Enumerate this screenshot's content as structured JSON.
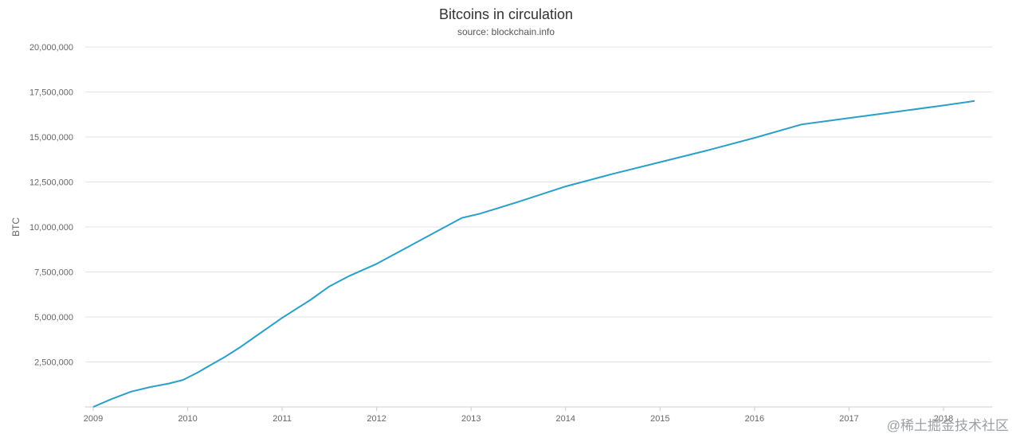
{
  "chart_data": {
    "type": "line",
    "title": "Bitcoins in circulation",
    "subtitle": "source: blockchain.info",
    "xlabel": "",
    "ylabel": "BTC",
    "x_ticks": [
      "2009",
      "2010",
      "2011",
      "2012",
      "2013",
      "2014",
      "2015",
      "2016",
      "2017",
      "2018"
    ],
    "y_ticks": [
      "2,500,000",
      "5,000,000",
      "7,500,000",
      "10,000,000",
      "12,500,000",
      "15,000,000",
      "17,500,000",
      "20,000,000"
    ],
    "xlim": [
      2009.0,
      2018.43
    ],
    "ylim": [
      0,
      20000000
    ],
    "grid": "horizontal",
    "legend": "none",
    "line_color": "#2a9fc9",
    "series": [
      {
        "x": [
          2009.0,
          2009.2,
          2009.4,
          2009.6,
          2009.8,
          2009.95,
          2010.1,
          2010.25,
          2010.4,
          2010.55,
          2010.7,
          2010.85,
          2011.0,
          2011.15,
          2011.3,
          2011.5,
          2011.7,
          2012.0,
          2012.3,
          2012.6,
          2012.9,
          2013.1,
          2013.5,
          2014.0,
          2014.5,
          2015.0,
          2015.5,
          2016.0,
          2016.5,
          2017.0,
          2017.5,
          2018.0,
          2018.33
        ],
        "y": [
          0,
          450000,
          850000,
          1100000,
          1300000,
          1500000,
          1900000,
          2350000,
          2800000,
          3300000,
          3850000,
          4400000,
          4950000,
          5450000,
          5950000,
          6700000,
          7250000,
          7950000,
          8800000,
          9650000,
          10500000,
          10750000,
          11400000,
          12250000,
          12950000,
          13600000,
          14250000,
          14950000,
          15700000,
          16050000,
          16400000,
          16750000,
          17000000
        ]
      }
    ]
  },
  "watermark": "@稀土掘金技术社区"
}
